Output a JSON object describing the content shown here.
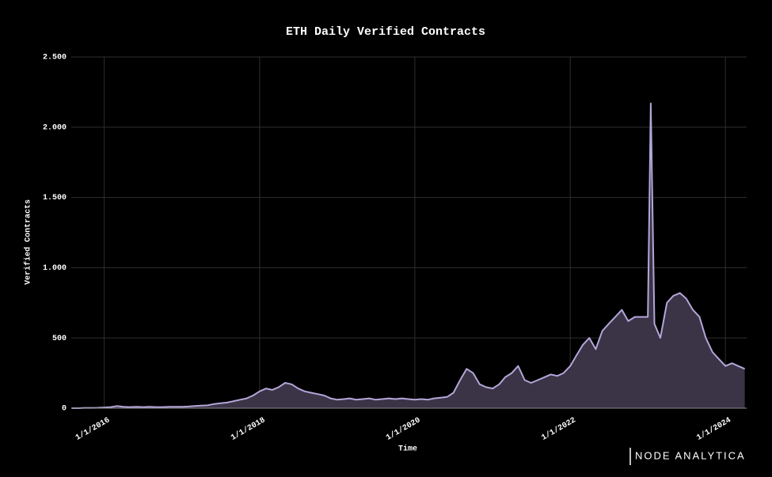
{
  "chart_data": {
    "type": "area",
    "title": "ETH Daily Verified Contracts",
    "x_label": "Time",
    "y_label": "Verified Contracts",
    "brand": "NODE ANALYTICA",
    "grid": true,
    "fill_color": "#3a3446",
    "x": [
      "2015-08-01",
      "2015-09-01",
      "2015-10-01",
      "2015-11-01",
      "2015-12-01",
      "2016-01-01",
      "2016-02-01",
      "2016-03-01",
      "2016-04-01",
      "2016-05-01",
      "2016-06-01",
      "2016-07-01",
      "2016-08-01",
      "2016-09-01",
      "2016-10-01",
      "2016-11-01",
      "2016-12-01",
      "2017-01-01",
      "2017-02-01",
      "2017-03-01",
      "2017-04-01",
      "2017-05-01",
      "2017-06-01",
      "2017-07-01",
      "2017-08-01",
      "2017-09-01",
      "2017-10-01",
      "2017-11-01",
      "2017-12-01",
      "2018-01-01",
      "2018-02-01",
      "2018-03-01",
      "2018-04-01",
      "2018-05-01",
      "2018-06-01",
      "2018-07-01",
      "2018-08-01",
      "2018-09-01",
      "2018-10-01",
      "2018-11-01",
      "2018-12-01",
      "2019-01-01",
      "2019-02-01",
      "2019-03-01",
      "2019-04-01",
      "2019-05-01",
      "2019-06-01",
      "2019-07-01",
      "2019-08-01",
      "2019-09-01",
      "2019-10-01",
      "2019-11-01",
      "2019-12-01",
      "2020-01-01",
      "2020-02-01",
      "2020-03-01",
      "2020-04-01",
      "2020-05-01",
      "2020-06-01",
      "2020-07-01",
      "2020-08-01",
      "2020-09-01",
      "2020-10-01",
      "2020-11-01",
      "2020-12-01",
      "2021-01-01",
      "2021-02-01",
      "2021-03-01",
      "2021-04-01",
      "2021-05-01",
      "2021-06-01",
      "2021-07-01",
      "2021-08-01",
      "2021-09-01",
      "2021-10-01",
      "2021-11-01",
      "2021-12-01",
      "2022-01-01",
      "2022-02-01",
      "2022-03-01",
      "2022-04-01",
      "2022-05-01",
      "2022-06-01",
      "2022-07-01",
      "2022-08-01",
      "2022-09-01",
      "2022-10-01",
      "2022-11-01",
      "2022-12-01",
      "2023-01-01",
      "2023-01-15",
      "2023-02-01",
      "2023-03-01",
      "2023-04-01",
      "2023-05-01",
      "2023-06-01",
      "2023-07-01",
      "2023-08-01",
      "2023-09-01",
      "2023-10-01",
      "2023-11-01",
      "2023-12-01",
      "2024-01-01",
      "2024-02-01",
      "2024-03-01",
      "2024-04-01"
    ],
    "series": [
      {
        "name": "Verified Contracts",
        "color": "#b3a6d8",
        "values": [
          0,
          0,
          2,
          2,
          3,
          5,
          8,
          15,
          10,
          8,
          10,
          8,
          10,
          8,
          8,
          10,
          10,
          10,
          12,
          15,
          18,
          20,
          30,
          35,
          40,
          50,
          60,
          70,
          90,
          120,
          140,
          130,
          150,
          180,
          170,
          140,
          120,
          110,
          100,
          90,
          70,
          60,
          65,
          70,
          60,
          65,
          70,
          60,
          65,
          70,
          65,
          70,
          65,
          60,
          65,
          60,
          70,
          75,
          80,
          110,
          200,
          280,
          250,
          170,
          150,
          140,
          170,
          220,
          250,
          300,
          200,
          180,
          200,
          220,
          240,
          230,
          250,
          300,
          380,
          450,
          500,
          420,
          550,
          600,
          650,
          700,
          620,
          650,
          650,
          650,
          2170,
          600,
          500,
          750,
          800,
          820,
          780,
          700,
          650,
          500,
          400,
          350,
          300,
          320,
          300,
          280
        ]
      }
    ],
    "xlim": [
      "2015-07-30",
      "2024-04-10"
    ],
    "xticks": [
      {
        "value": "2016-01-01",
        "label": "1/1/2016"
      },
      {
        "value": "2018-01-01",
        "label": "1/1/2018"
      },
      {
        "value": "2020-01-01",
        "label": "1/1/2020"
      },
      {
        "value": "2022-01-01",
        "label": "1/1/2022"
      },
      {
        "value": "2024-01-01",
        "label": "1/1/2024"
      }
    ],
    "ylim": [
      0,
      2500
    ],
    "yticks": [
      0,
      500,
      {
        "value": 1000,
        "label": "1.000"
      },
      {
        "value": 1500,
        "label": "1.500"
      },
      {
        "value": 2000,
        "label": "2.000"
      },
      {
        "value": 2500,
        "label": "2.500"
      }
    ]
  }
}
